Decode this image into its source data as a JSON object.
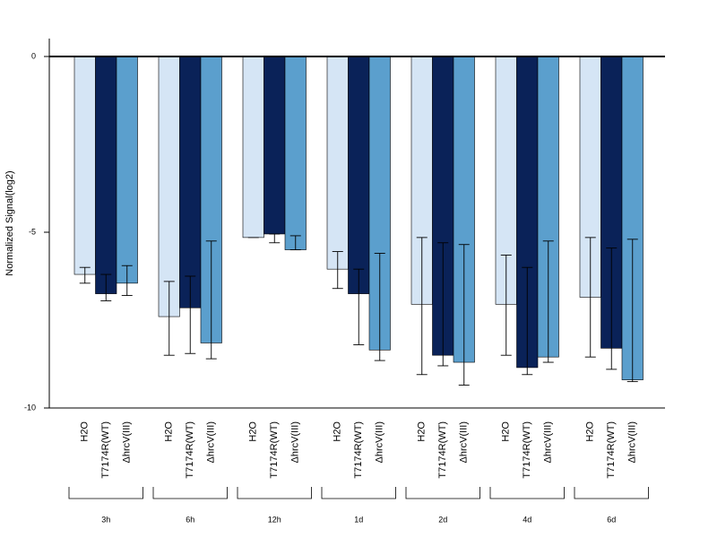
{
  "chart_data": {
    "type": "bar",
    "title": "",
    "xlabel": "",
    "ylabel": "Normalized Signal(log2)",
    "ylim": [
      -10,
      0.5
    ],
    "yticks": [
      0,
      -5,
      -10
    ],
    "grid": false,
    "legend": "none",
    "groups": [
      "3h",
      "6h",
      "12h",
      "1d",
      "2d",
      "4d",
      "6d"
    ],
    "bar_labels": [
      "H2O",
      "T7174R(WT)",
      "ΔhrcV(III)"
    ],
    "colors": [
      "#d5e5f5",
      "#0a2258",
      "#5b9fcd"
    ],
    "series": [
      {
        "values": [
          -6.2,
          -7.4,
          -5.15,
          -6.05,
          -7.05,
          -7.05,
          -6.85
        ],
        "err_low": [
          -6.45,
          -8.5,
          -5.15,
          -6.6,
          -9.05,
          -8.5,
          -8.55
        ],
        "err_high": [
          -6.0,
          -6.4,
          -5.15,
          -5.55,
          -5.15,
          -5.65,
          -5.15
        ]
      },
      {
        "values": [
          -6.75,
          -7.15,
          -5.05,
          -6.75,
          -8.5,
          -8.85,
          -8.3
        ],
        "err_low": [
          -6.95,
          -8.45,
          -5.3,
          -8.2,
          -8.8,
          -9.05,
          -8.9
        ],
        "err_high": [
          -6.2,
          -6.25,
          -5.05,
          -6.05,
          -5.3,
          -6.0,
          -5.45
        ]
      },
      {
        "values": [
          -6.45,
          -8.15,
          -5.5,
          -8.35,
          -8.7,
          -8.55,
          -9.2
        ],
        "err_low": [
          -6.8,
          -8.6,
          -5.5,
          -8.65,
          -9.35,
          -8.7,
          -9.25
        ],
        "err_high": [
          -5.95,
          -5.25,
          -5.1,
          -5.6,
          -5.35,
          -5.25,
          -5.2
        ]
      }
    ]
  }
}
